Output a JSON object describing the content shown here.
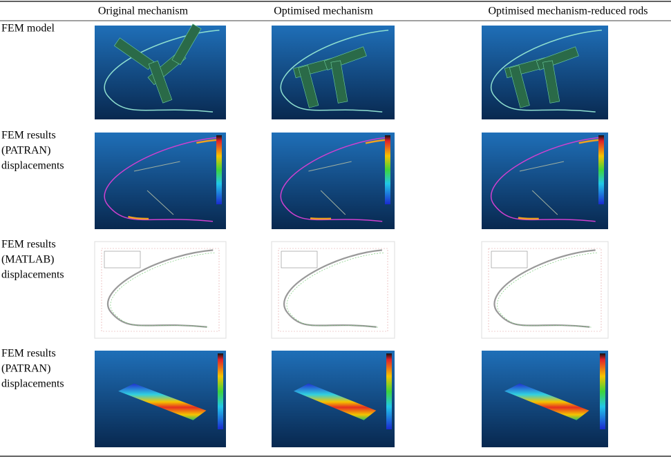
{
  "table": {
    "columns": [
      "Original mechanism",
      "Optimised mechanism",
      "Optimised mechanism-reduced rods"
    ],
    "rows": [
      {
        "label": [
          "FEM model"
        ]
      },
      {
        "label": [
          "FEM results",
          "(PATRAN)",
          "displacements"
        ]
      },
      {
        "label": [
          "FEM results",
          "(MATLAB)",
          "displacements"
        ]
      },
      {
        "label": [
          "FEM results",
          "(PATRAN)",
          "displacements"
        ]
      }
    ]
  }
}
